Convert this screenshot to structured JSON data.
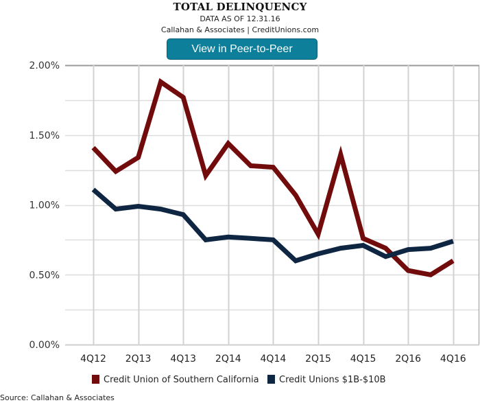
{
  "header": {
    "title": "TOTAL DELINQUENCY",
    "subtitle": "DATA AS OF 12.31.16",
    "attribution": "Callahan & Associates | CreditUnions.com",
    "button_label": "View in Peer-to-Peer",
    "button_color": "#0e7f9b"
  },
  "footer": {
    "source": "Source: Callahan & Associates"
  },
  "chart_data": {
    "type": "line",
    "title": "TOTAL DELINQUENCY",
    "xlabel": "",
    "ylabel": "",
    "ylim": [
      0,
      2.0
    ],
    "yticks": [
      0,
      0.5,
      1.0,
      1.5,
      2.0
    ],
    "ytick_labels": [
      "0.00%",
      "0.50%",
      "1.00%",
      "1.50%",
      "2.00%"
    ],
    "minor_grid_step": 0.25,
    "grid": true,
    "legend_position": "bottom",
    "x": [
      "4Q12",
      "1Q13",
      "2Q13",
      "3Q13",
      "4Q13",
      "1Q14",
      "2Q14",
      "3Q14",
      "4Q14",
      "1Q15",
      "2Q15",
      "3Q15",
      "4Q15",
      "1Q16",
      "2Q16",
      "3Q16",
      "4Q16"
    ],
    "xtick_labels": [
      "4Q12",
      "2Q13",
      "4Q13",
      "2Q14",
      "4Q14",
      "2Q15",
      "4Q15",
      "2Q16",
      "4Q16"
    ],
    "series": [
      {
        "name": "Credit Union of Southern California",
        "color": "#720b0b",
        "values": [
          1.41,
          1.24,
          1.34,
          1.88,
          1.77,
          1.21,
          1.44,
          1.28,
          1.27,
          1.07,
          0.79,
          1.36,
          0.76,
          0.69,
          0.53,
          0.5,
          0.6
        ]
      },
      {
        "name": "Credit Unions $1B-$10B",
        "color": "#0f2642",
        "values": [
          1.11,
          0.97,
          0.99,
          0.97,
          0.93,
          0.75,
          0.77,
          0.76,
          0.75,
          0.6,
          0.65,
          0.69,
          0.71,
          0.63,
          0.68,
          0.69,
          0.74
        ]
      }
    ]
  }
}
